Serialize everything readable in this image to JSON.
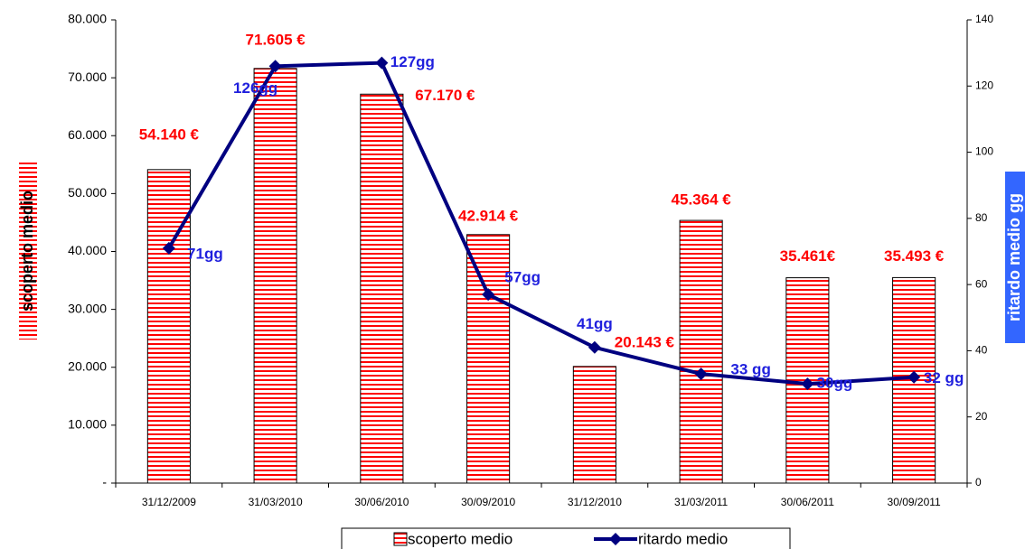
{
  "chart_data": {
    "type": "bar_line",
    "categories": [
      "31/12/2009",
      "31/03/2010",
      "30/06/2010",
      "30/09/2010",
      "31/12/2010",
      "31/03/2011",
      "30/06/2011",
      "30/09/2011"
    ],
    "series": [
      {
        "name": "scoperto medio",
        "type": "bar",
        "color": "#ff0000",
        "values": [
          54140,
          71605,
          67170,
          42914,
          20143,
          45364,
          35461,
          35493
        ],
        "value_labels": [
          "54.140 €",
          "71.605 €",
          "67.170 €",
          "42.914 €",
          "20.143 €",
          "45.364 €",
          "35.461€",
          "35.493 €"
        ]
      },
      {
        "name": "ritardo medio",
        "type": "line",
        "axis": "y2",
        "color": "#000080",
        "values": [
          71,
          126,
          127,
          57,
          41,
          33,
          30,
          32
        ],
        "value_labels": [
          "71gg",
          "126gg",
          "127gg",
          "57gg",
          "41gg",
          "33 gg",
          "30gg",
          "32 gg"
        ]
      }
    ],
    "ylabel": "scoperto medio",
    "y2label": "ritardo medio gg",
    "ylim": [
      0,
      80000
    ],
    "yticks": [
      {
        "value": 0,
        "label": "-"
      },
      {
        "value": 10000,
        "label": "10.000"
      },
      {
        "value": 20000,
        "label": "20.000"
      },
      {
        "value": 30000,
        "label": "30.000"
      },
      {
        "value": 40000,
        "label": "40.000"
      },
      {
        "value": 50000,
        "label": "50.000"
      },
      {
        "value": 60000,
        "label": "60.000"
      },
      {
        "value": 70000,
        "label": "70.000"
      },
      {
        "value": 80000,
        "label": "80.000"
      }
    ],
    "y2lim": [
      0,
      140
    ],
    "y2ticks": [
      0,
      20,
      40,
      60,
      80,
      100,
      120,
      140
    ],
    "grid": false,
    "legend": "bottom"
  }
}
